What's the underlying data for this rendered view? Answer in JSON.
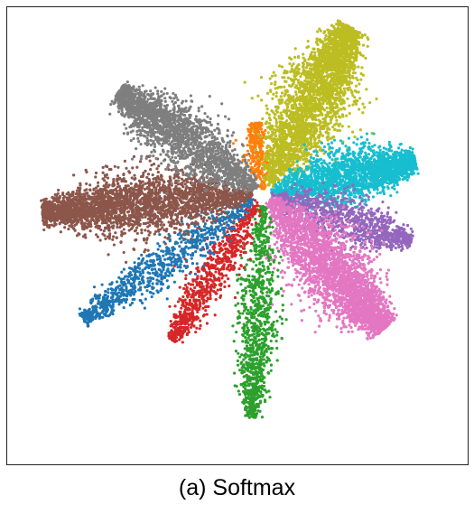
{
  "caption": "(a) Softmax",
  "chart_data": {
    "type": "scatter",
    "title": "",
    "xlabel": "",
    "ylabel": "",
    "axes_visible": false,
    "grid": false,
    "legend": "none",
    "xlim": [
      -1.0,
      1.0
    ],
    "ylim": [
      -1.0,
      1.0
    ],
    "series": [
      {
        "color": "#ff7f0e",
        "points": 320,
        "direction_deg": 97,
        "length": 0.33,
        "spread": 0.035
      },
      {
        "color": "#bcbd22",
        "points": 3000,
        "direction_deg": 62,
        "length": 0.87,
        "spread": 0.09
      },
      {
        "color": "#17becf",
        "points": 2200,
        "direction_deg": 12,
        "length": 0.72,
        "spread": 0.07
      },
      {
        "color": "#9467bd",
        "points": 1000,
        "direction_deg": -18,
        "length": 0.72,
        "spread": 0.06
      },
      {
        "color": "#e377c2",
        "points": 3000,
        "direction_deg": -48,
        "length": 0.84,
        "spread": 0.09
      },
      {
        "color": "#2ca02c",
        "points": 1000,
        "direction_deg": -93,
        "length": 1.04,
        "spread": 0.055
      },
      {
        "color": "#d62728",
        "points": 800,
        "direction_deg": -122,
        "length": 0.8,
        "spread": 0.05
      },
      {
        "color": "#1f77b4",
        "points": 900,
        "direction_deg": -145,
        "length": 1.02,
        "spread": 0.055
      },
      {
        "color": "#8c564b",
        "points": 3000,
        "direction_deg": -175,
        "length": 1.03,
        "spread": 0.08
      },
      {
        "color": "#7f7f7f",
        "points": 2200,
        "direction_deg": 145,
        "length": 0.82,
        "spread": 0.08
      }
    ]
  }
}
